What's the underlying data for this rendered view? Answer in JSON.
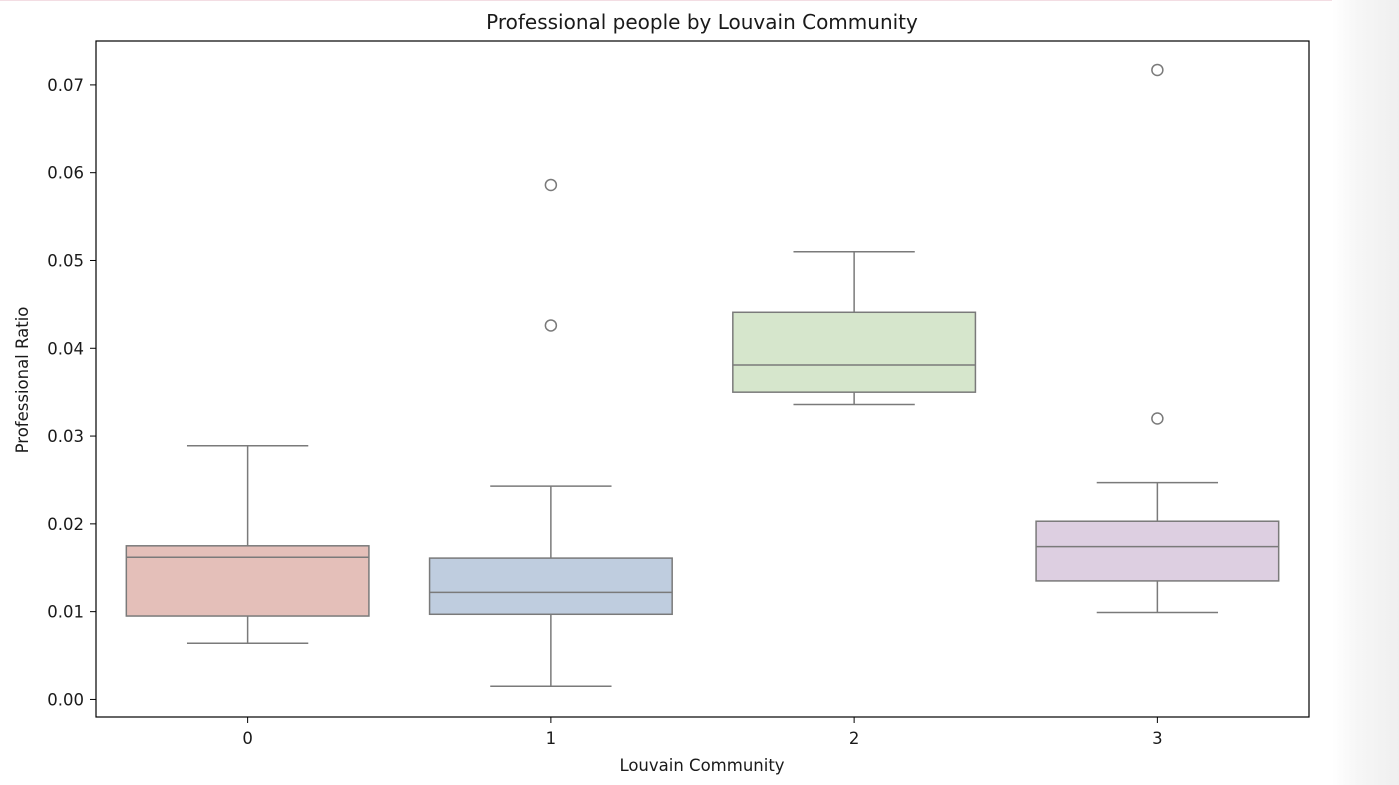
{
  "chart_data": {
    "type": "box",
    "title": "Professional people by Louvain Community",
    "xlabel": "Louvain Community",
    "ylabel": "Professional Ratio",
    "ylim": [
      -0.002,
      0.075
    ],
    "yticks": [
      "0.00",
      "0.01",
      "0.02",
      "0.03",
      "0.04",
      "0.05",
      "0.06",
      "0.07"
    ],
    "categories": [
      "0",
      "1",
      "2",
      "3"
    ],
    "grid": false,
    "legend": "none",
    "boxes": [
      {
        "category": "0",
        "color": "#e4bfb9",
        "whisker_low": 0.0064,
        "q1": 0.0095,
        "median": 0.0162,
        "q3": 0.0175,
        "whisker_high": 0.0289,
        "outliers": []
      },
      {
        "category": "1",
        "color": "#bfcddf",
        "whisker_low": 0.0015,
        "q1": 0.0097,
        "median": 0.0122,
        "q3": 0.0161,
        "whisker_high": 0.0243,
        "outliers": [
          0.0586,
          0.0426
        ]
      },
      {
        "category": "2",
        "color": "#d6e6cc",
        "whisker_low": 0.0336,
        "q1": 0.035,
        "median": 0.0381,
        "q3": 0.0441,
        "whisker_high": 0.051,
        "outliers": []
      },
      {
        "category": "3",
        "color": "#ddcfe1",
        "whisker_low": 0.0099,
        "q1": 0.0135,
        "median": 0.0174,
        "q3": 0.0203,
        "whisker_high": 0.0247,
        "outliers": [
          0.0717,
          0.032
        ]
      }
    ]
  }
}
